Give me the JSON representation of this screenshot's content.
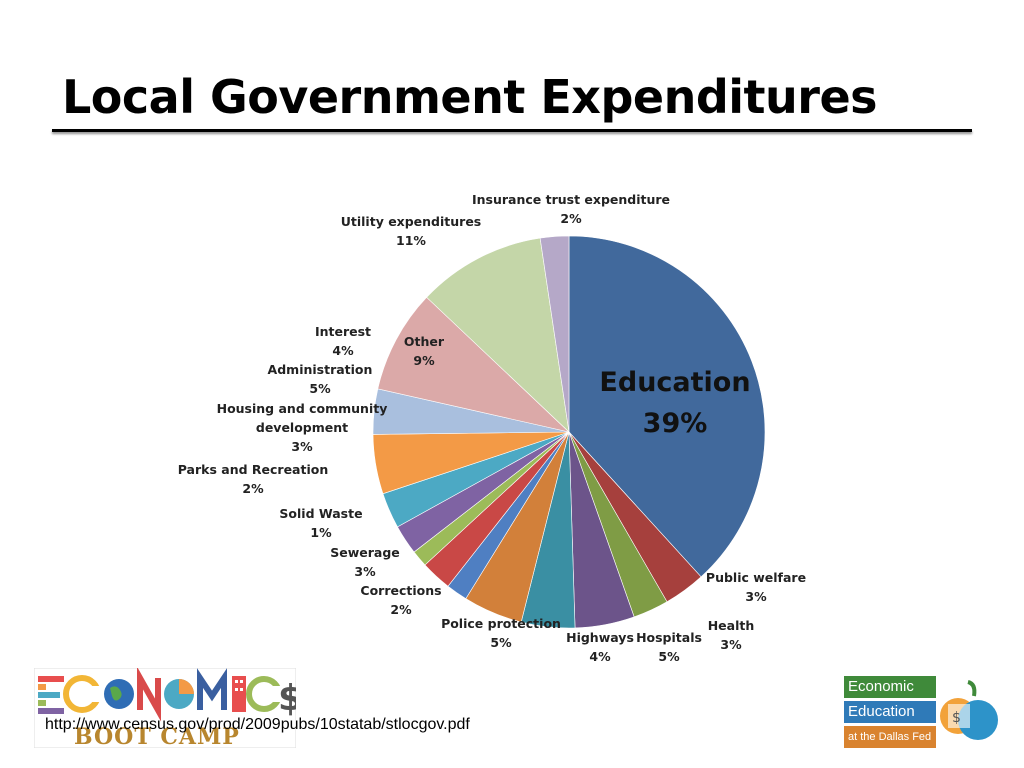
{
  "slide": {
    "title": "Local Government Expenditures",
    "source_url": "http://www.census.gov/prod/2009pubs/10statab/stlocgov.pdf"
  },
  "logos": {
    "left_text": "BOOT CAMP",
    "right_line1": "Economic",
    "right_line2": "Education",
    "right_line3": "at the Dallas Fed"
  },
  "chart_data": {
    "type": "pie",
    "title": "",
    "slices": [
      {
        "label": "Education",
        "pct_label": "39%",
        "value": 39,
        "color": "#41699c"
      },
      {
        "label": "Public welfare",
        "pct_label": "3%",
        "value": 3.5,
        "color": "#a6403d"
      },
      {
        "label": "Health",
        "pct_label": "3%",
        "value": 3,
        "color": "#7f9c45"
      },
      {
        "label": "Hospitals",
        "pct_label": "5%",
        "value": 5,
        "color": "#6c548a"
      },
      {
        "label": "Highways",
        "pct_label": "4%",
        "value": 4.5,
        "color": "#3a8fa3"
      },
      {
        "label": "Police protection",
        "pct_label": "5%",
        "value": 5,
        "color": "#d2803a"
      },
      {
        "label": "Corrections",
        "pct_label": "2%",
        "value": 1.8,
        "color": "#4f7fc2"
      },
      {
        "label": "Sewerage",
        "pct_label": "3%",
        "value": 2.6,
        "color": "#c94846"
      },
      {
        "label": "Solid Waste",
        "pct_label": "1%",
        "value": 1.4,
        "color": "#9cbb59"
      },
      {
        "label": "Parks and Recreation",
        "pct_label": "2%",
        "value": 2.5,
        "color": "#7f63a3"
      },
      {
        "label": "Housing and community development",
        "pct_label": "3%",
        "value": 3,
        "color": "#4ca9c4"
      },
      {
        "label": "Administration",
        "pct_label": "5%",
        "value": 5,
        "color": "#f39a46"
      },
      {
        "label": "Interest",
        "pct_label": "4%",
        "value": 3.8,
        "color": "#a9bfde"
      },
      {
        "label": "Other",
        "pct_label": "9%",
        "value": 8.7,
        "color": "#dba9a8"
      },
      {
        "label": "Utility expenditures",
        "pct_label": "11%",
        "value": 10.8,
        "color": "#c4d6a8"
      },
      {
        "label": "Insurance trust expenditure",
        "pct_label": "2%",
        "value": 2.4,
        "color": "#b5a8c8"
      }
    ]
  }
}
